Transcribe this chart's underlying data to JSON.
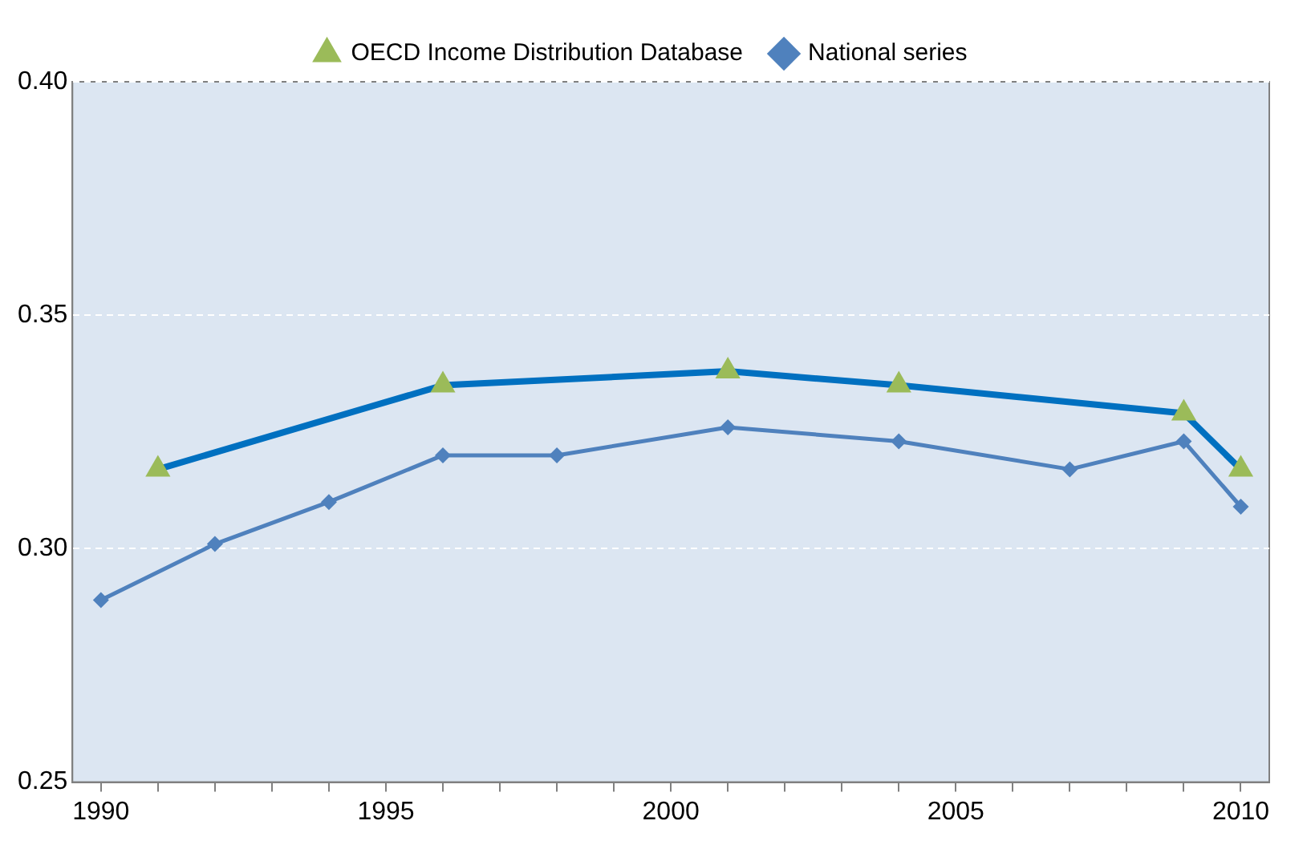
{
  "chart_data": {
    "type": "line",
    "xlim": [
      1989.5,
      2010.5
    ],
    "ylim": [
      0.25,
      0.4
    ],
    "yticks": [
      {
        "value": 0.25,
        "label": "0.25"
      },
      {
        "value": 0.3,
        "label": "0.30"
      },
      {
        "value": 0.35,
        "label": "0.35"
      },
      {
        "value": 0.4,
        "label": "0.40"
      }
    ],
    "xticks": [
      1990,
      {
        "value": 1991,
        "label": null
      },
      {
        "value": 1992,
        "label": null
      },
      {
        "value": 1993,
        "label": null
      },
      {
        "value": 1994,
        "label": null
      },
      1995,
      {
        "value": 1996,
        "label": null
      },
      {
        "value": 1997,
        "label": null
      },
      {
        "value": 1998,
        "label": null
      },
      {
        "value": 1999,
        "label": null
      },
      2000,
      {
        "value": 2001,
        "label": null
      },
      {
        "value": 2002,
        "label": null
      },
      {
        "value": 2003,
        "label": null
      },
      {
        "value": 2004,
        "label": null
      },
      2005,
      {
        "value": 2006,
        "label": null
      },
      {
        "value": 2007,
        "label": null
      },
      {
        "value": 2008,
        "label": null
      },
      {
        "value": 2009,
        "label": null
      },
      2010
    ],
    "grid": "y",
    "legend": "top",
    "line_style": "solid",
    "series": [
      {
        "name": "OECD Income Distribution Database",
        "color": "#0070c0",
        "marker": "triangle",
        "x": [
          1991,
          1996,
          2001,
          2004,
          2009,
          2010
        ],
        "values": [
          0.317,
          0.335,
          0.338,
          0.335,
          0.329,
          0.317
        ]
      },
      {
        "name": "National series",
        "color": "#4f81bd",
        "marker": "diamond",
        "x": [
          1990,
          1992,
          1994,
          1996,
          1998,
          2001,
          2004,
          2007,
          2009,
          2010
        ],
        "values": [
          0.289,
          0.301,
          0.31,
          0.32,
          0.32,
          0.326,
          0.323,
          0.317,
          0.323,
          0.309
        ]
      }
    ]
  }
}
